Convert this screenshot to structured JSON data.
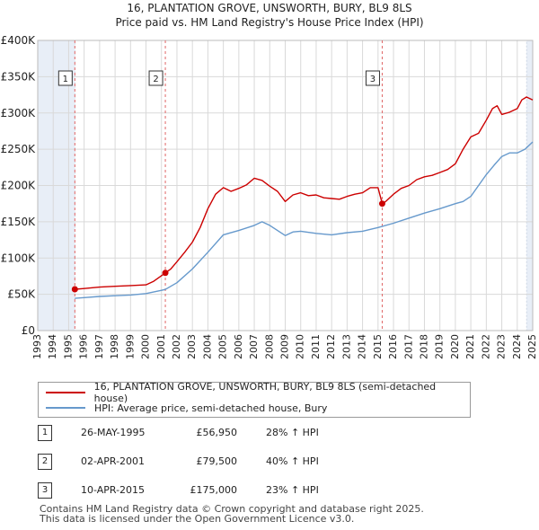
{
  "title_line1": "16, PLANTATION GROVE, UNSWORTH, BURY, BL9 8LS",
  "title_line2": "Price paid vs. HM Land Registry's House Price Index (HPI)",
  "colors": {
    "price": "#cc0000",
    "hpi": "#6699cc",
    "grid": "#d9d9d9",
    "shade": "#e8eef7",
    "vline": "#e06666"
  },
  "chart_data": {
    "type": "line",
    "title": "16, PLANTATION GROVE, UNSWORTH, BURY, BL9 8LS",
    "subtitle": "Price paid vs. HM Land Registry's House Price Index (HPI)",
    "xlabel": "",
    "ylabel": "",
    "xlim": [
      1993,
      2025
    ],
    "ylim": [
      0,
      400000
    ],
    "x_ticks": [
      1993,
      1994,
      1995,
      1996,
      1997,
      1998,
      1999,
      2000,
      2001,
      2002,
      2003,
      2004,
      2005,
      2006,
      2007,
      2008,
      2009,
      2010,
      2011,
      2012,
      2013,
      2014,
      2015,
      2016,
      2017,
      2018,
      2019,
      2020,
      2021,
      2022,
      2023,
      2024,
      2025
    ],
    "x_tick_labels": [
      "1993",
      "1994",
      "1995",
      "1996",
      "1997",
      "1998",
      "1999",
      "2000",
      "2001",
      "2002",
      "2003",
      "2004",
      "2005",
      "2006",
      "2007",
      "2008",
      "2009",
      "2010",
      "2011",
      "2012",
      "2013",
      "2014",
      "2015",
      "2016",
      "2017",
      "2018",
      "2019",
      "2020",
      "2021",
      "2022",
      "2023",
      "2024",
      "2025"
    ],
    "y_ticks": [
      0,
      50000,
      100000,
      150000,
      200000,
      250000,
      300000,
      350000,
      400000
    ],
    "y_tick_labels": [
      "£0",
      "£50K",
      "£100K",
      "£150K",
      "£200K",
      "£250K",
      "£300K",
      "£350K",
      "£400K"
    ],
    "grid": true,
    "shaded_ranges": [
      [
        1993,
        1995.4
      ],
      [
        2024.6,
        2025
      ]
    ],
    "series": [
      {
        "name": "16, PLANTATION GROVE, UNSWORTH, BURY, BL9 8LS (semi-detached house)",
        "color": "#cc0000",
        "x": [
          1995.4,
          1996,
          1997,
          1998,
          1999,
          2000,
          2000.5,
          2001.25,
          2001.6,
          2002,
          2002.5,
          2003,
          2003.5,
          2004,
          2004.5,
          2005,
          2005.5,
          2006,
          2006.5,
          2007,
          2007.5,
          2008,
          2008.5,
          2009,
          2009.5,
          2010,
          2010.5,
          2011,
          2011.5,
          2012,
          2012.5,
          2013,
          2013.5,
          2014,
          2014.5,
          2015,
          2015.27,
          2015.5,
          2016,
          2016.5,
          2017,
          2017.5,
          2018,
          2018.5,
          2019,
          2019.5,
          2020,
          2020.5,
          2021,
          2021.5,
          2022,
          2022.4,
          2022.7,
          2023,
          2023.5,
          2024,
          2024.3,
          2024.6,
          2025
        ],
        "values": [
          56950,
          58000,
          60000,
          61000,
          62000,
          63000,
          68000,
          79500,
          85000,
          95000,
          108000,
          122000,
          142000,
          168000,
          188000,
          197000,
          192000,
          196000,
          201000,
          210000,
          207000,
          199000,
          192000,
          178000,
          187000,
          190000,
          186000,
          187000,
          183000,
          182000,
          181000,
          185000,
          188000,
          190000,
          197000,
          197000,
          175000,
          178000,
          188000,
          196000,
          200000,
          208000,
          212000,
          214000,
          218000,
          222000,
          230000,
          250000,
          267000,
          272000,
          290000,
          306000,
          310000,
          298000,
          301000,
          306000,
          318000,
          322000,
          318000
        ]
      },
      {
        "name": "HPI: Average price, semi-detached house, Bury",
        "color": "#6699cc",
        "x": [
          1995.4,
          1996,
          1997,
          1998,
          1999,
          2000,
          2001,
          2001.25,
          2002,
          2003,
          2004,
          2005,
          2006,
          2007,
          2007.5,
          2008,
          2008.5,
          2009,
          2009.5,
          2010,
          2011,
          2012,
          2013,
          2014,
          2015,
          2016,
          2017,
          2018,
          2019,
          2020,
          2020.5,
          2021,
          2021.5,
          2022,
          2022.5,
          2023,
          2023.5,
          2024,
          2024.5,
          2025
        ],
        "values": [
          44500,
          45500,
          47000,
          48000,
          49000,
          51000,
          55500,
          56700,
          66000,
          85000,
          108000,
          132000,
          138000,
          145000,
          150000,
          145000,
          138000,
          131000,
          136000,
          137000,
          134000,
          132000,
          135000,
          137000,
          142000,
          148000,
          155000,
          162000,
          168000,
          175000,
          178000,
          185000,
          200000,
          215000,
          228000,
          240000,
          245000,
          245000,
          250000,
          260000
        ]
      }
    ],
    "markers": [
      {
        "label": "1",
        "x": 1995.4,
        "value": 56950
      },
      {
        "label": "2",
        "x": 2001.25,
        "value": 79500
      },
      {
        "label": "3",
        "x": 2015.27,
        "value": 175000
      }
    ]
  },
  "legend": {
    "price_label": "16, PLANTATION GROVE, UNSWORTH, BURY, BL9 8LS (semi-detached house)",
    "hpi_label": "HPI: Average price, semi-detached house, Bury"
  },
  "sales": [
    {
      "num": "1",
      "date": "26-MAY-1995",
      "price": "£56,950",
      "hpi": "28% ↑ HPI"
    },
    {
      "num": "2",
      "date": "02-APR-2001",
      "price": "£79,500",
      "hpi": "40% ↑ HPI"
    },
    {
      "num": "3",
      "date": "10-APR-2015",
      "price": "£175,000",
      "hpi": "23% ↑ HPI"
    }
  ],
  "footer_line1": "Contains HM Land Registry data © Crown copyright and database right 2025.",
  "footer_line2": "This data is licensed under the Open Government Licence v3.0."
}
